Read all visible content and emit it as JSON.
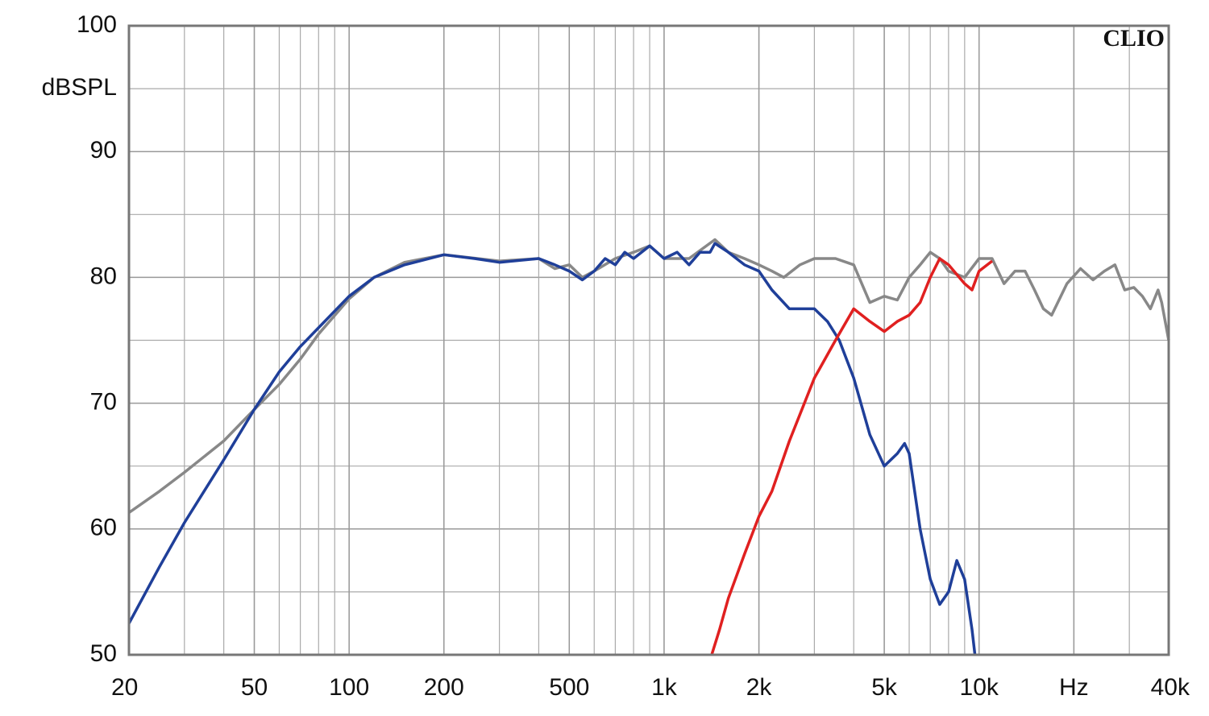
{
  "chart_data": {
    "type": "line",
    "y_label": "dBSPL",
    "annotation": "CLIO",
    "x_scale": "log",
    "grid": true,
    "xlim": [
      20,
      40000
    ],
    "ylim": [
      50,
      100
    ],
    "xticks": [
      20,
      50,
      100,
      200,
      500,
      {
        "value": 1000,
        "label": "1k"
      },
      {
        "value": 2000,
        "label": "2k"
      },
      {
        "value": 5000,
        "label": "5k"
      },
      {
        "value": 10000,
        "label": "10k"
      },
      {
        "value": 20000,
        "label": "Hz"
      },
      {
        "value": 40000,
        "label": "40k"
      }
    ],
    "yticks": [
      50,
      60,
      70,
      80,
      90,
      100
    ],
    "series": [
      {
        "color": "#888888",
        "x": [
          20,
          25,
          30,
          40,
          50,
          60,
          70,
          80,
          100,
          120,
          150,
          200,
          300,
          400,
          450,
          500,
          550,
          600,
          700,
          800,
          900,
          1000,
          1200,
          1450,
          1600,
          1800,
          2000,
          2200,
          2400,
          2700,
          3000,
          3500,
          4000,
          4500,
          5000,
          5500,
          6000,
          6500,
          7000,
          7500,
          8000,
          9000,
          10000,
          11000,
          12000,
          13000,
          14000,
          15000,
          16000,
          17000,
          19000,
          21000,
          23000,
          25000,
          27000,
          29000,
          31000,
          33000,
          35000,
          37000,
          38000,
          40000
        ],
        "values": [
          61.3,
          63,
          64.5,
          67,
          69.5,
          71.5,
          73.5,
          75.5,
          78.3,
          80,
          81.2,
          81.8,
          81.3,
          81.5,
          80.7,
          81,
          80,
          80.5,
          81.5,
          82,
          82.5,
          81.5,
          81.5,
          83,
          82,
          81.5,
          81,
          80.5,
          80,
          81,
          81.5,
          81.5,
          81,
          78,
          78.5,
          78.2,
          80,
          81,
          82,
          81.5,
          80.5,
          80,
          81.5,
          81.5,
          79.5,
          80.5,
          80.5,
          79,
          77.5,
          77,
          79.5,
          80.7,
          79.8,
          80.5,
          81,
          79,
          79.2,
          78.5,
          77.5,
          79,
          78,
          75
        ]
      },
      {
        "color": "#1f3f99",
        "x": [
          20,
          25,
          30,
          40,
          50,
          60,
          70,
          80,
          100,
          120,
          150,
          200,
          250,
          300,
          400,
          450,
          500,
          550,
          600,
          650,
          700,
          750,
          800,
          900,
          1000,
          1100,
          1200,
          1300,
          1400,
          1450,
          1600,
          1800,
          2000,
          2200,
          2500,
          2800,
          3000,
          3300,
          3600,
          4000,
          4500,
          5000,
          5500,
          5800,
          6000,
          6500,
          7000,
          7500,
          8000,
          8500,
          9000,
          9500,
          9700
        ],
        "values": [
          52.5,
          57,
          60.5,
          65.5,
          69.5,
          72.5,
          74.5,
          76,
          78.5,
          80,
          81,
          81.8,
          81.5,
          81.2,
          81.5,
          81,
          80.5,
          79.8,
          80.5,
          81.5,
          81,
          82,
          81.5,
          82.5,
          81.5,
          82,
          81,
          82,
          82,
          82.7,
          82,
          81,
          80.5,
          79,
          77.5,
          77.5,
          77.5,
          76.5,
          75,
          72,
          67.5,
          65,
          66,
          66.8,
          66,
          60,
          56,
          54,
          55,
          57.5,
          56,
          52,
          50
        ]
      },
      {
        "color": "#e02020",
        "x": [
          1416,
          1500,
          1600,
          1800,
          2000,
          2200,
          2500,
          3000,
          3500,
          4000,
          4500,
          5000,
          5500,
          6000,
          6500,
          7000,
          7500,
          8000,
          9000,
          9500,
          10000,
          11000
        ],
        "values": [
          50,
          52,
          54.5,
          58,
          61,
          63,
          67,
          72,
          75,
          77.5,
          76.5,
          75.7,
          76.5,
          77,
          78,
          80,
          81.5,
          81,
          79.5,
          79,
          80.5,
          81.3
        ]
      }
    ]
  }
}
